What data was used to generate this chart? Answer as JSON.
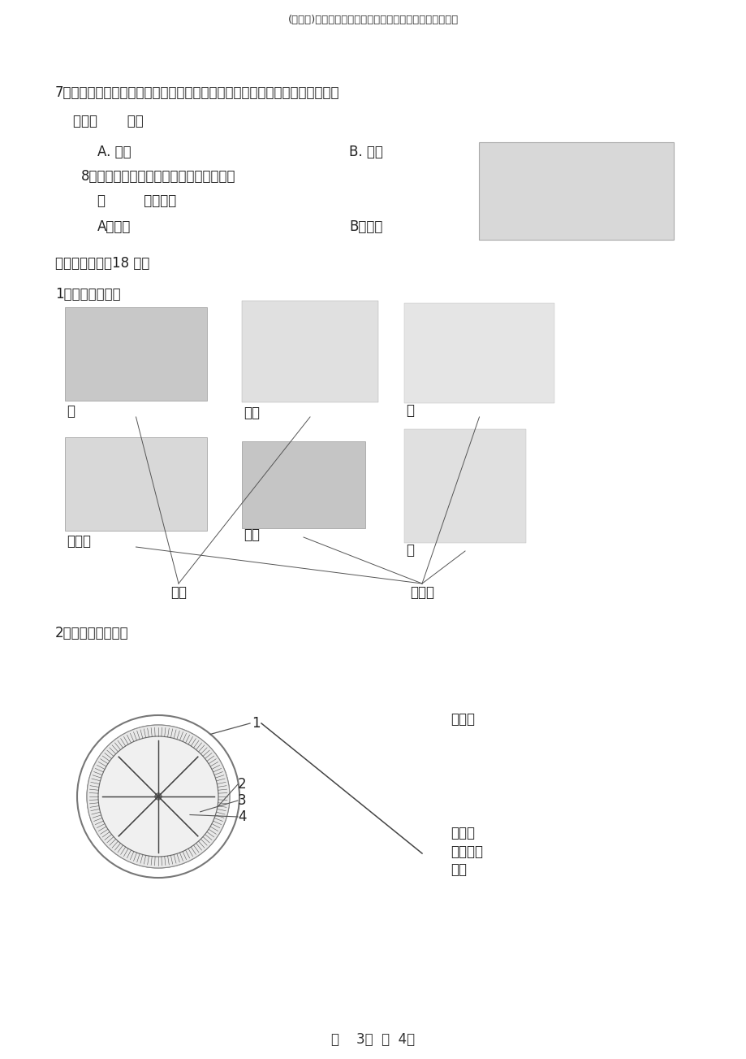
{
  "bg_color": "#ffffff",
  "title": "(完满版)教科版小学科学三年级下册期末考试一试题及答案",
  "q7_line1": "7、很早以前，人们在搜寻铁矿时，发现了一种能吸铁的矿石，他们把这种矿石",
  "q7_line2": "叫做（       ）。",
  "q7_a": "A. 磁铁",
  "q7_b": "B. 磁石",
  "q8_line1": "8、磁铁上磁力最强的部分叫磁极，磁铁有",
  "q8_line2": "（         ）磁极。",
  "q8_a": "A、两个",
  "q8_b": "B、一个",
  "sec4_title": "四、连线题。（18 分）",
  "sec4_sub1": "1、动物的分类。",
  "label_can": "蚕",
  "label_butterfly": "蝴蝶",
  "label_cat": "猫",
  "label_panda": "大熊猫",
  "label_lizard": "蟾蜍",
  "label_monkey": "猴",
  "label_metamorphosis": "变态",
  "label_no_metamorphosis": "不变态",
  "sec4_sub2": "2、指南针的组成。",
  "compass_label1": "刻度盘",
  "compass_label2": "指南针",
  "compass_label3": "星形指针",
  "compass_label4": "外壳",
  "footer": "第    3页  共  4页"
}
